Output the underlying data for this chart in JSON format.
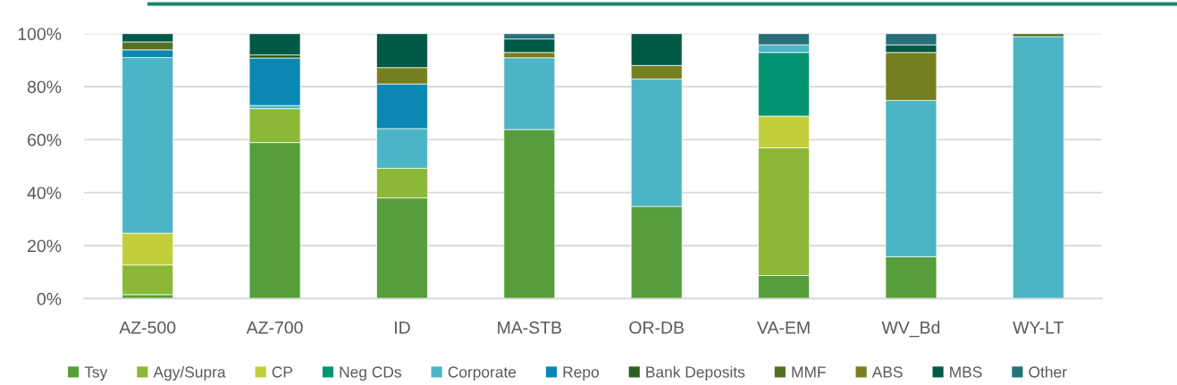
{
  "chart_data": {
    "type": "bar",
    "stacked": true,
    "grid": "y",
    "legend": "bottom",
    "categories": [
      "AZ-500",
      "AZ-700",
      "ID",
      "MA-STB",
      "OR-DB",
      "VA-EM",
      "WV_Bd",
      "WY-LT"
    ],
    "ylim": [
      0,
      100
    ],
    "yticks": [
      {
        "value": 0,
        "label": "0%"
      },
      {
        "value": 20,
        "label": "20%"
      },
      {
        "value": 40,
        "label": "40%"
      },
      {
        "value": 60,
        "label": "60%"
      },
      {
        "value": 80,
        "label": "80%"
      },
      {
        "value": 100,
        "label": "100%"
      }
    ],
    "series": [
      {
        "name": "Tsy",
        "color": "#559e3b",
        "values": [
          1.5,
          58.9,
          38.0,
          63.8,
          34.8,
          8.7,
          15.8,
          null
        ]
      },
      {
        "name": "Agy/Supra",
        "color": "#8bb836",
        "values": [
          11.2,
          12.8,
          11.2,
          null,
          null,
          48.2,
          null,
          null
        ]
      },
      {
        "name": "CP",
        "color": "#c3cf3a",
        "values": [
          12.0,
          null,
          null,
          null,
          null,
          12.0,
          null,
          null
        ]
      },
      {
        "name": "Neg CDs",
        "color": "#039573",
        "values": [
          null,
          null,
          null,
          null,
          null,
          24.0,
          null,
          null
        ]
      },
      {
        "name": "Corporate",
        "color": "#4bb5c5",
        "values": [
          66.3,
          1.2,
          15.0,
          27.1,
          48.1,
          2.9,
          59.0,
          98.9
        ]
      },
      {
        "name": "Repo",
        "color": "#0a87b2",
        "values": [
          2.9,
          17.9,
          16.8,
          null,
          null,
          null,
          null,
          null
        ]
      },
      {
        "name": "Bank Deposits",
        "color": "#2f5f22",
        "values": [
          null,
          1.2,
          null,
          null,
          null,
          null,
          null,
          null
        ]
      },
      {
        "name": "MMF",
        "color": "#557023",
        "values": [
          3.0,
          null,
          null,
          null,
          null,
          null,
          null,
          1.1
        ]
      },
      {
        "name": "ABS",
        "color": "#778020",
        "values": [
          null,
          null,
          6.2,
          2.0,
          5.1,
          null,
          18.1,
          null
        ]
      },
      {
        "name": "MBS",
        "color": "#005a46",
        "values": [
          3.1,
          8.0,
          12.8,
          5.1,
          12.0,
          null,
          2.9,
          null
        ]
      },
      {
        "name": "Other",
        "color": "#27707a",
        "values": [
          null,
          null,
          null,
          2.0,
          null,
          4.2,
          4.2,
          null
        ]
      }
    ]
  }
}
